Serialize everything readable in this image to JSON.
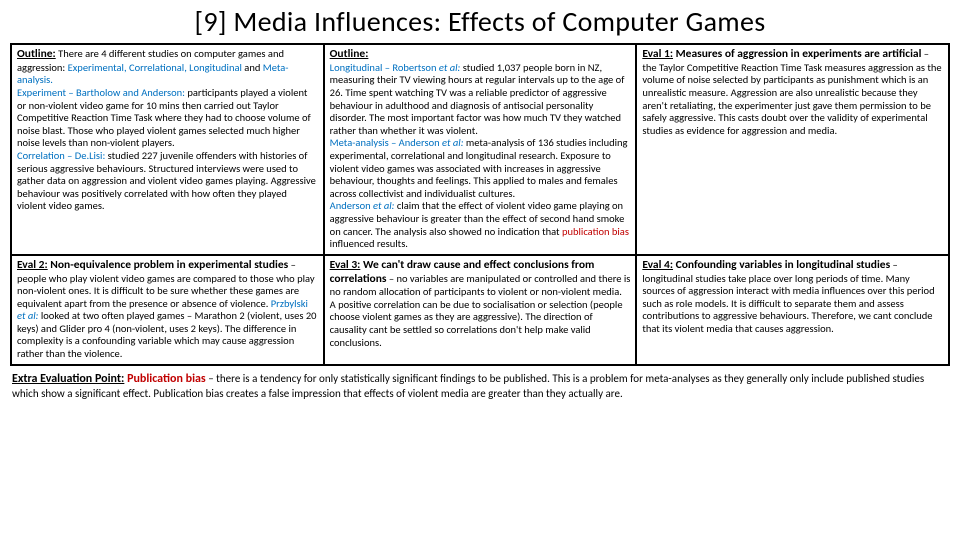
{
  "title": "[9] Media Influences: Effects of Computer Games",
  "cells": {
    "c1": {
      "heading": "Outline:",
      "intro": " There are 4 different studies on computer games and aggression: ",
      "types": "Experimental, Correlational, Longitudinal",
      "types2": " and ",
      "types3": "Meta-analysis.",
      "p1a": "Experiment – Bartholow and Anderson:",
      "p1b": " participants played a violent or non-violent video game for 10 mins then carried out Taylor Competitive Reaction Time Task where they had to choose volume of noise blast. Those who played violent games selected much higher noise levels than non-violent players.",
      "p2a": "Correlation – De.Lisi:",
      "p2b": " studied 227 juvenile offenders with histories of serious aggressive behaviours. Structured interviews were used to gather data on aggression and violent video games playing. Aggressive behaviour was positively correlated with how often they played violent video games."
    },
    "c2": {
      "heading": "Outline:",
      "p1a": "Longitudinal – Robertson ",
      "p1i": "et al:",
      "p1b": " studied 1,037 people born in NZ, measuring their TV viewing hours at regular intervals up to the age of 26. Time spent watching TV was a reliable predictor of aggressive behaviour in adulthood and diagnosis of antisocial personality disorder. The most important factor was how much TV they watched rather than whether it was violent.",
      "p2a": "Meta-analysis – Anderson ",
      "p2i": "et al:",
      "p2b": " meta-analysis of 136 studies including experimental, correlational and longitudinal research. Exposure to violent video games was associated with increases in aggressive behaviour, thoughts and feelings. This applied to males and females across collectivist and individualist cultures.",
      "p3a": "Anderson ",
      "p3i": "et al:",
      "p3b": " claim that the effect of violent video game playing on aggressive behaviour is greater than the effect of second hand smoke on cancer. The analysis also showed no indication that ",
      "p3c": "publication bias",
      "p3d": " influenced results."
    },
    "c3": {
      "heading": "Eval 1:",
      "sub": " Measures of aggression in experiments are artificial",
      "body": " – the Taylor Competitive Reaction Time Task measures aggression as the volume of noise selected by participants as punishment which is an unrealistic measure. Aggression are also unrealistic because they aren't retaliating, the experimenter just gave them permission to be safely aggressive. This casts doubt over the validity of experimental studies as evidence for aggression and media."
    },
    "c4": {
      "heading": "Eval 2:",
      "sub": " Non-equivalence problem in experimental studies",
      "body1": " – people who play violent video games are compared to those who play non-violent ones. It is difficult to be sure whether these games are equivalent apart from the presence or absence of violence. ",
      "hl1": "Przbylski ",
      "hl1i": "et al:",
      "body2": " looked at two often played games – Marathon 2 (violent, uses 20 keys) and Glider pro 4 (non-violent, uses 2 keys). The difference in complexity is a confounding variable which may cause aggression rather than the violence."
    },
    "c5": {
      "heading": "Eval 3:",
      "sub": " We can't draw cause and effect conclusions from correlations",
      "body": " – no variables are manipulated or controlled and there is no random allocation of participants to violent or non-violent media. A positive correlation can be due to socialisation or selection (people choose violent games as they are aggressive). The direction of causality cant be settled so correlations don't help make valid conclusions."
    },
    "c6": {
      "heading": "Eval 4:",
      "sub": " Confounding variables in longitudinal studies",
      "body": " – longitudinal studies take place over long periods of time. Many sources of aggression interact with media influences over this period such as role models. It is difficult to separate them and assess contributions to aggressive behaviours. Therefore, we cant conclude that its violent media that causes aggression."
    }
  },
  "extra": {
    "heading": "Extra Evaluation Point:",
    "pub": " Publication bias",
    "body": " – there is a tendency for only statistically significant findings to be published. This is a problem for meta-analyses as they generally only include published studies which show a significant effect. Publication bias creates a false impression that effects of violent media are greater than they actually are."
  }
}
